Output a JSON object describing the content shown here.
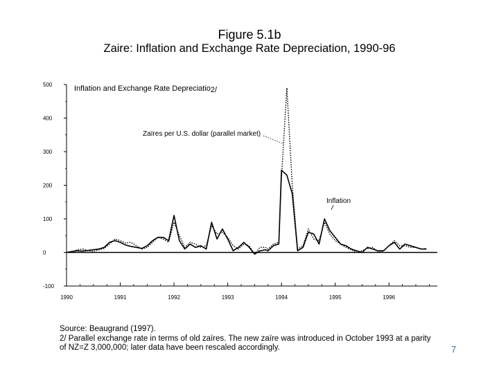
{
  "slide": {
    "title": "Figure 5.1b",
    "subtitle": "Zaire: Inflation and Exchange Rate Depreciation, 1990-96",
    "page_number": "7"
  },
  "footnotes": {
    "source": "Source: Beaugrand (1997).",
    "note_line1": "2/  Parallel exchange rate in terms of old zaïres.  The new zaïre was introduced in October 1993 at a parity",
    "note_line2": "of NZ=Z 3,000,000; later data have been rescaled accordingly."
  },
  "chart_data": {
    "type": "line",
    "title": "Inflation and Exchange Rate Depreciatio",
    "title_suffix": "2/",
    "ylim": [
      -100,
      500
    ],
    "yticks": [
      -100,
      0,
      100,
      200,
      300,
      400,
      500
    ],
    "xlim": [
      1990,
      1996.9
    ],
    "xticks": [
      1990,
      1991,
      1992,
      1993,
      1994,
      1995,
      1996
    ],
    "grid": false,
    "annotations": [
      {
        "text": "Zaïres per U.S. dollar (parallel market)",
        "series": "Zaïres per U.S. dollar (parallel market)"
      },
      {
        "text": "Inflation",
        "series": "Inflation"
      }
    ],
    "series": [
      {
        "name": "Inflation",
        "style": "solid",
        "x": [
          1990.0,
          1990.1,
          1990.2,
          1990.3,
          1990.4,
          1990.5,
          1990.6,
          1990.7,
          1990.8,
          1990.9,
          1991.0,
          1991.1,
          1991.2,
          1991.3,
          1991.4,
          1991.5,
          1991.6,
          1991.7,
          1991.8,
          1991.9,
          1992.0,
          1992.1,
          1992.2,
          1992.3,
          1992.4,
          1992.5,
          1992.6,
          1992.7,
          1992.8,
          1992.9,
          1993.0,
          1993.1,
          1993.2,
          1993.3,
          1993.4,
          1993.5,
          1993.6,
          1993.7,
          1993.75,
          1993.85,
          1993.95,
          1994.0,
          1994.1,
          1994.2,
          1994.3,
          1994.4,
          1994.5,
          1994.6,
          1994.7,
          1994.8,
          1994.9,
          1995.0,
          1995.1,
          1995.2,
          1995.3,
          1995.4,
          1995.5,
          1995.6,
          1995.7,
          1995.8,
          1995.9,
          1996.0,
          1996.1,
          1996.2,
          1996.3,
          1996.4,
          1996.5,
          1996.6,
          1996.7
        ],
        "values": [
          0,
          3,
          5,
          4,
          6,
          8,
          10,
          15,
          30,
          35,
          30,
          22,
          18,
          15,
          12,
          20,
          35,
          45,
          45,
          35,
          110,
          35,
          10,
          25,
          15,
          20,
          10,
          90,
          40,
          70,
          40,
          5,
          15,
          30,
          15,
          -5,
          5,
          8,
          5,
          20,
          25,
          245,
          230,
          175,
          5,
          15,
          60,
          55,
          25,
          100,
          65,
          45,
          25,
          20,
          10,
          5,
          0,
          15,
          10,
          5,
          5,
          20,
          30,
          10,
          25,
          20,
          15,
          10,
          10
        ]
      },
      {
        "name": "Zaïres per U.S. dollar (parallel market)",
        "style": "dotted",
        "x": [
          1990.0,
          1990.1,
          1990.2,
          1990.3,
          1990.4,
          1990.5,
          1990.6,
          1990.7,
          1990.8,
          1990.9,
          1991.0,
          1991.1,
          1991.2,
          1991.3,
          1991.4,
          1991.5,
          1991.6,
          1991.7,
          1991.8,
          1991.9,
          1992.0,
          1992.1,
          1992.2,
          1992.3,
          1992.4,
          1992.5,
          1992.6,
          1992.7,
          1992.8,
          1992.9,
          1993.0,
          1993.1,
          1993.2,
          1993.3,
          1993.4,
          1993.5,
          1993.6,
          1993.7,
          1993.75,
          1993.85,
          1993.95,
          1994.0,
          1994.1,
          1994.2,
          1994.3,
          1994.4,
          1994.5,
          1994.6,
          1994.7,
          1994.8,
          1994.9,
          1995.0,
          1995.1,
          1995.2,
          1995.3,
          1995.4,
          1995.5,
          1995.6,
          1995.7,
          1995.8,
          1995.9,
          1996.0,
          1996.1,
          1996.2,
          1996.3,
          1996.4,
          1996.5,
          1996.6,
          1996.7
        ],
        "values": [
          0,
          2,
          8,
          10,
          5,
          3,
          8,
          12,
          25,
          40,
          35,
          28,
          30,
          20,
          10,
          15,
          30,
          45,
          40,
          30,
          90,
          50,
          15,
          30,
          25,
          15,
          20,
          80,
          55,
          60,
          45,
          20,
          10,
          25,
          20,
          -5,
          15,
          15,
          10,
          25,
          30,
          220,
          490,
          200,
          10,
          20,
          70,
          40,
          35,
          90,
          55,
          35,
          25,
          15,
          8,
          0,
          5,
          12,
          15,
          0,
          5,
          20,
          35,
          20,
          20,
          15,
          15,
          10,
          12
        ]
      }
    ]
  }
}
